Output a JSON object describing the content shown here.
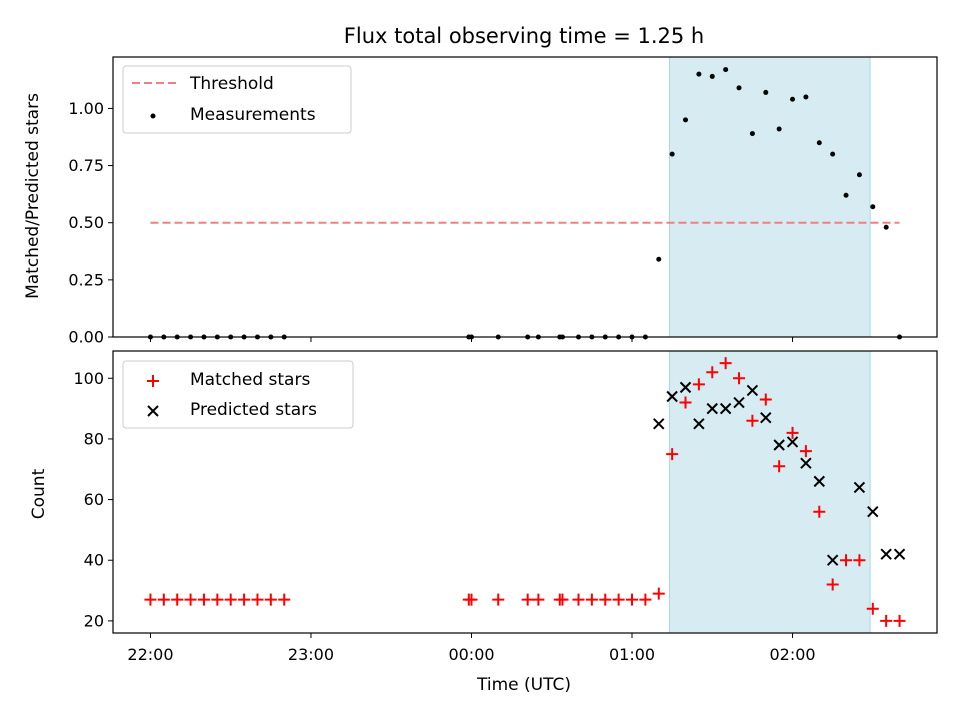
{
  "chart_data": [
    {
      "type": "scatter",
      "title": "Flux total observing time = 1.25 h",
      "ylabel": "Matched/Predicted stars",
      "xlabel": "",
      "ylim": [
        0,
        1.225
      ],
      "yticks": [
        "0.00",
        "0.25",
        "0.50",
        "0.75",
        "1.00"
      ],
      "legend_position": "top-left",
      "shaded_interval": [
        "01:14",
        "02:29"
      ],
      "threshold": {
        "label": "Threshold",
        "value": 0.5,
        "x_range": [
          "22:00",
          "02:40"
        ],
        "color": "#f08080"
      },
      "series": [
        {
          "name": "Measurements",
          "color": "#000000",
          "marker": "dot",
          "points": [
            [
              "22:00",
              0
            ],
            [
              "22:05",
              0
            ],
            [
              "22:10",
              0
            ],
            [
              "22:15",
              0
            ],
            [
              "22:20",
              0
            ],
            [
              "22:25",
              0
            ],
            [
              "22:30",
              0
            ],
            [
              "22:35",
              0
            ],
            [
              "22:40",
              0
            ],
            [
              "22:45",
              0
            ],
            [
              "22:50",
              0
            ],
            [
              "23:59",
              0
            ],
            [
              "00:00",
              0
            ],
            [
              "00:10",
              0
            ],
            [
              "00:21",
              0
            ],
            [
              "00:25",
              0
            ],
            [
              "00:33",
              0
            ],
            [
              "00:34",
              0
            ],
            [
              "00:40",
              0
            ],
            [
              "00:45",
              0
            ],
            [
              "00:50",
              0
            ],
            [
              "00:55",
              0
            ],
            [
              "01:00",
              0
            ],
            [
              "01:05",
              0
            ],
            [
              "01:10",
              0.34
            ],
            [
              "01:15",
              0.8
            ],
            [
              "01:20",
              0.95
            ],
            [
              "01:25",
              1.15
            ],
            [
              "01:30",
              1.14
            ],
            [
              "01:35",
              1.17
            ],
            [
              "01:40",
              1.09
            ],
            [
              "01:45",
              0.89
            ],
            [
              "01:50",
              1.07
            ],
            [
              "01:55",
              0.91
            ],
            [
              "02:00",
              1.04
            ],
            [
              "02:05",
              1.05
            ],
            [
              "02:10",
              0.85
            ],
            [
              "02:15",
              0.8
            ],
            [
              "02:20",
              0.62
            ],
            [
              "02:25",
              0.71
            ],
            [
              "02:30",
              0.57
            ],
            [
              "02:35",
              0.48
            ],
            [
              "02:40",
              0
            ]
          ]
        }
      ]
    },
    {
      "type": "scatter",
      "title": "",
      "ylabel": "Count",
      "xlabel": "Time (UTC)",
      "ylim": [
        16,
        109
      ],
      "yticks": [
        "20",
        "40",
        "60",
        "80",
        "100"
      ],
      "xticks": [
        "22:00",
        "23:00",
        "00:00",
        "01:00",
        "02:00"
      ],
      "legend_position": "top-left",
      "shaded_interval": [
        "01:14",
        "02:29"
      ],
      "series": [
        {
          "name": "Matched stars",
          "color": "#ff0000",
          "marker": "plus",
          "points": [
            [
              "22:00",
              27
            ],
            [
              "22:05",
              27
            ],
            [
              "22:10",
              27
            ],
            [
              "22:15",
              27
            ],
            [
              "22:20",
              27
            ],
            [
              "22:25",
              27
            ],
            [
              "22:30",
              27
            ],
            [
              "22:35",
              27
            ],
            [
              "22:40",
              27
            ],
            [
              "22:45",
              27
            ],
            [
              "22:50",
              27
            ],
            [
              "23:59",
              27
            ],
            [
              "00:00",
              27
            ],
            [
              "00:10",
              27
            ],
            [
              "00:21",
              27
            ],
            [
              "00:25",
              27
            ],
            [
              "00:33",
              27
            ],
            [
              "00:34",
              27
            ],
            [
              "00:40",
              27
            ],
            [
              "00:45",
              27
            ],
            [
              "00:50",
              27
            ],
            [
              "00:55",
              27
            ],
            [
              "01:00",
              27
            ],
            [
              "01:05",
              27
            ],
            [
              "01:10",
              29
            ],
            [
              "01:15",
              75
            ],
            [
              "01:20",
              92
            ],
            [
              "01:25",
              98
            ],
            [
              "01:30",
              102
            ],
            [
              "01:35",
              105
            ],
            [
              "01:40",
              100
            ],
            [
              "01:45",
              86
            ],
            [
              "01:50",
              93
            ],
            [
              "01:55",
              71
            ],
            [
              "02:00",
              82
            ],
            [
              "02:05",
              76
            ],
            [
              "02:10",
              56
            ],
            [
              "02:15",
              32
            ],
            [
              "02:20",
              40
            ],
            [
              "02:25",
              40
            ],
            [
              "02:30",
              24
            ],
            [
              "02:35",
              20
            ],
            [
              "02:40",
              20
            ]
          ]
        },
        {
          "name": "Predicted stars",
          "color": "#000000",
          "marker": "x",
          "points": [
            [
              "01:10",
              85
            ],
            [
              "01:15",
              94
            ],
            [
              "01:20",
              97
            ],
            [
              "01:25",
              85
            ],
            [
              "01:30",
              90
            ],
            [
              "01:35",
              90
            ],
            [
              "01:40",
              92
            ],
            [
              "01:45",
              96
            ],
            [
              "01:50",
              87
            ],
            [
              "01:55",
              78
            ],
            [
              "02:00",
              79
            ],
            [
              "02:05",
              72
            ],
            [
              "02:10",
              66
            ],
            [
              "02:15",
              40
            ],
            [
              "02:25",
              64
            ],
            [
              "02:30",
              56
            ],
            [
              "02:35",
              42
            ],
            [
              "02:40",
              42
            ]
          ]
        }
      ]
    }
  ]
}
